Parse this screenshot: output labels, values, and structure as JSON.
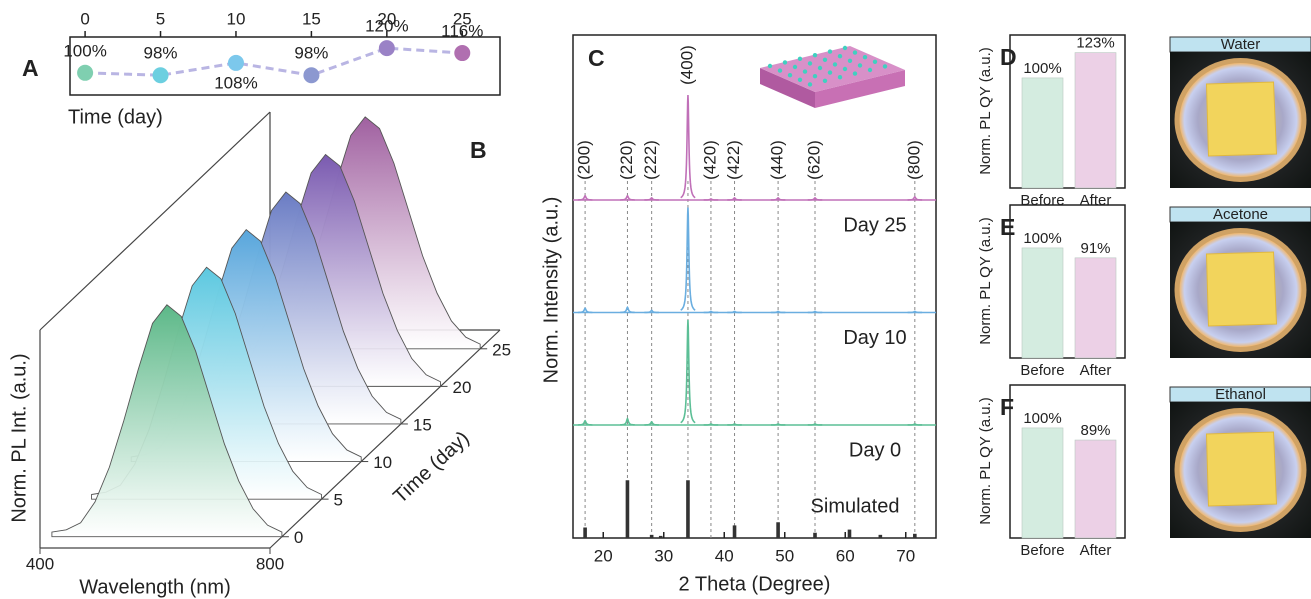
{
  "chart_data": [
    {
      "type": "line",
      "panel": "A",
      "x": [
        0,
        5,
        10,
        15,
        20,
        25
      ],
      "values": [
        100,
        98,
        108,
        98,
        120,
        116
      ],
      "value_labels": [
        "100%",
        "98%",
        "108%",
        "98%",
        "120%",
        "116%"
      ],
      "colors": [
        "#7fcfb0",
        "#6ccfe0",
        "#7cc8ec",
        "#8c98d0",
        "#9a82c6",
        "#b06fb0"
      ],
      "line_color": "#b9b5e3",
      "xlim": [
        -1,
        27.5
      ],
      "xticks": [
        0,
        5,
        10,
        15,
        20,
        25
      ],
      "ylim": [
        82,
        129
      ],
      "x_label": "Time (day)"
    },
    {
      "type": "waterfall",
      "panel": "B",
      "x": [
        400,
        425,
        450,
        475,
        500,
        525,
        550,
        575,
        600,
        625,
        650,
        675,
        700,
        725,
        750,
        775,
        800
      ],
      "xlim": [
        400,
        800
      ],
      "xticks": [
        400,
        800
      ],
      "ylim": [
        0,
        0.94
      ],
      "zlim": [
        -1.5,
        27.5
      ],
      "zticks": [
        0,
        5,
        10,
        15,
        20,
        25
      ],
      "x_label": "Wavelength (nm)",
      "y_label": "Norm. PL Int. (a.u.)",
      "z_label": "Time (day)",
      "series": [
        {
          "z": 0,
          "color": "#5cb888",
          "values": [
            0.02,
            0.03,
            0.06,
            0.15,
            0.3,
            0.5,
            0.72,
            0.92,
            1.0,
            0.95,
            0.8,
            0.6,
            0.4,
            0.24,
            0.12,
            0.05,
            0.02
          ]
        },
        {
          "z": 5,
          "color": "#5cc8e0",
          "values": [
            0.02,
            0.03,
            0.06,
            0.15,
            0.3,
            0.5,
            0.72,
            0.92,
            1.0,
            0.95,
            0.8,
            0.6,
            0.4,
            0.24,
            0.12,
            0.05,
            0.02
          ]
        },
        {
          "z": 10,
          "color": "#58a6dc",
          "values": [
            0.02,
            0.03,
            0.06,
            0.15,
            0.3,
            0.5,
            0.72,
            0.92,
            1.0,
            0.95,
            0.8,
            0.6,
            0.4,
            0.24,
            0.12,
            0.05,
            0.02
          ]
        },
        {
          "z": 15,
          "color": "#6a7cc4",
          "values": [
            0.02,
            0.03,
            0.06,
            0.15,
            0.3,
            0.5,
            0.72,
            0.92,
            1.0,
            0.95,
            0.8,
            0.6,
            0.4,
            0.24,
            0.12,
            0.05,
            0.02
          ]
        },
        {
          "z": 20,
          "color": "#7a5ab0",
          "values": [
            0.02,
            0.03,
            0.06,
            0.15,
            0.3,
            0.5,
            0.72,
            0.92,
            1.0,
            0.95,
            0.8,
            0.6,
            0.4,
            0.24,
            0.12,
            0.05,
            0.02
          ]
        },
        {
          "z": 25,
          "color": "#a060a0",
          "values": [
            0.02,
            0.03,
            0.06,
            0.15,
            0.3,
            0.5,
            0.72,
            0.92,
            1.0,
            0.95,
            0.8,
            0.6,
            0.4,
            0.24,
            0.12,
            0.05,
            0.02
          ]
        }
      ]
    },
    {
      "type": "xrd",
      "panel": "C",
      "xlim": [
        15,
        75
      ],
      "xticks": [
        20,
        30,
        40,
        50,
        60,
        70
      ],
      "x_label": "2 Theta (Degree)",
      "y_label": "Norm. Intensity (a.u.)",
      "peaks": {
        "labels": [
          "(200)",
          "(220)",
          "(222)",
          "(400)",
          "(420)",
          "(422)",
          "(440)",
          "(620)",
          "(800)"
        ],
        "x": [
          17,
          24,
          28,
          34,
          37.8,
          41.7,
          48.9,
          55,
          71.5
        ]
      },
      "series": [
        {
          "name": "Day 25",
          "color": "#c070b8",
          "values": [
            4,
            4,
            2,
            100,
            1,
            2,
            2,
            2,
            3
          ]
        },
        {
          "name": "Day 10",
          "color": "#6aaee0",
          "values": [
            4,
            5,
            2,
            100,
            1,
            1,
            1,
            1,
            1
          ]
        },
        {
          "name": "Day 0",
          "color": "#5cbf96",
          "values": [
            4,
            6,
            3,
            100,
            1,
            1,
            1,
            1,
            1
          ]
        }
      ],
      "simulated": {
        "name": "Simulated",
        "color": "#333333",
        "x": [
          17,
          24,
          28,
          29.5,
          34,
          41.7,
          48.9,
          55,
          60.7,
          65.8,
          71.5
        ],
        "values": [
          10,
          55,
          3,
          2,
          55,
          12,
          15,
          5,
          8,
          3,
          4
        ]
      }
    },
    {
      "type": "bar",
      "panel": "D",
      "categories": [
        "Before",
        "After"
      ],
      "values": [
        100,
        123
      ],
      "value_labels": [
        "100%",
        "123%"
      ],
      "colors": [
        "#d4ece0",
        "#ecd0e6"
      ],
      "ylim": [
        0,
        139
      ],
      "y_label": "Norm. PL QY (a.u.)",
      "photo_label": "Water"
    },
    {
      "type": "bar",
      "panel": "E",
      "categories": [
        "Before",
        "After"
      ],
      "values": [
        100,
        91
      ],
      "value_labels": [
        "100%",
        "91%"
      ],
      "colors": [
        "#d4ece0",
        "#ecd0e6"
      ],
      "ylim": [
        0,
        139
      ],
      "y_label": "Norm. PL QY (a.u.)",
      "photo_label": "Acetone"
    },
    {
      "type": "bar",
      "panel": "F",
      "categories": [
        "Before",
        "After"
      ],
      "values": [
        100,
        89
      ],
      "value_labels": [
        "100%",
        "89%"
      ],
      "colors": [
        "#d4ece0",
        "#ecd0e6"
      ],
      "ylim": [
        0,
        139
      ],
      "y_label": "Norm. PL QY (a.u.)",
      "photo_label": "Ethanol"
    }
  ]
}
